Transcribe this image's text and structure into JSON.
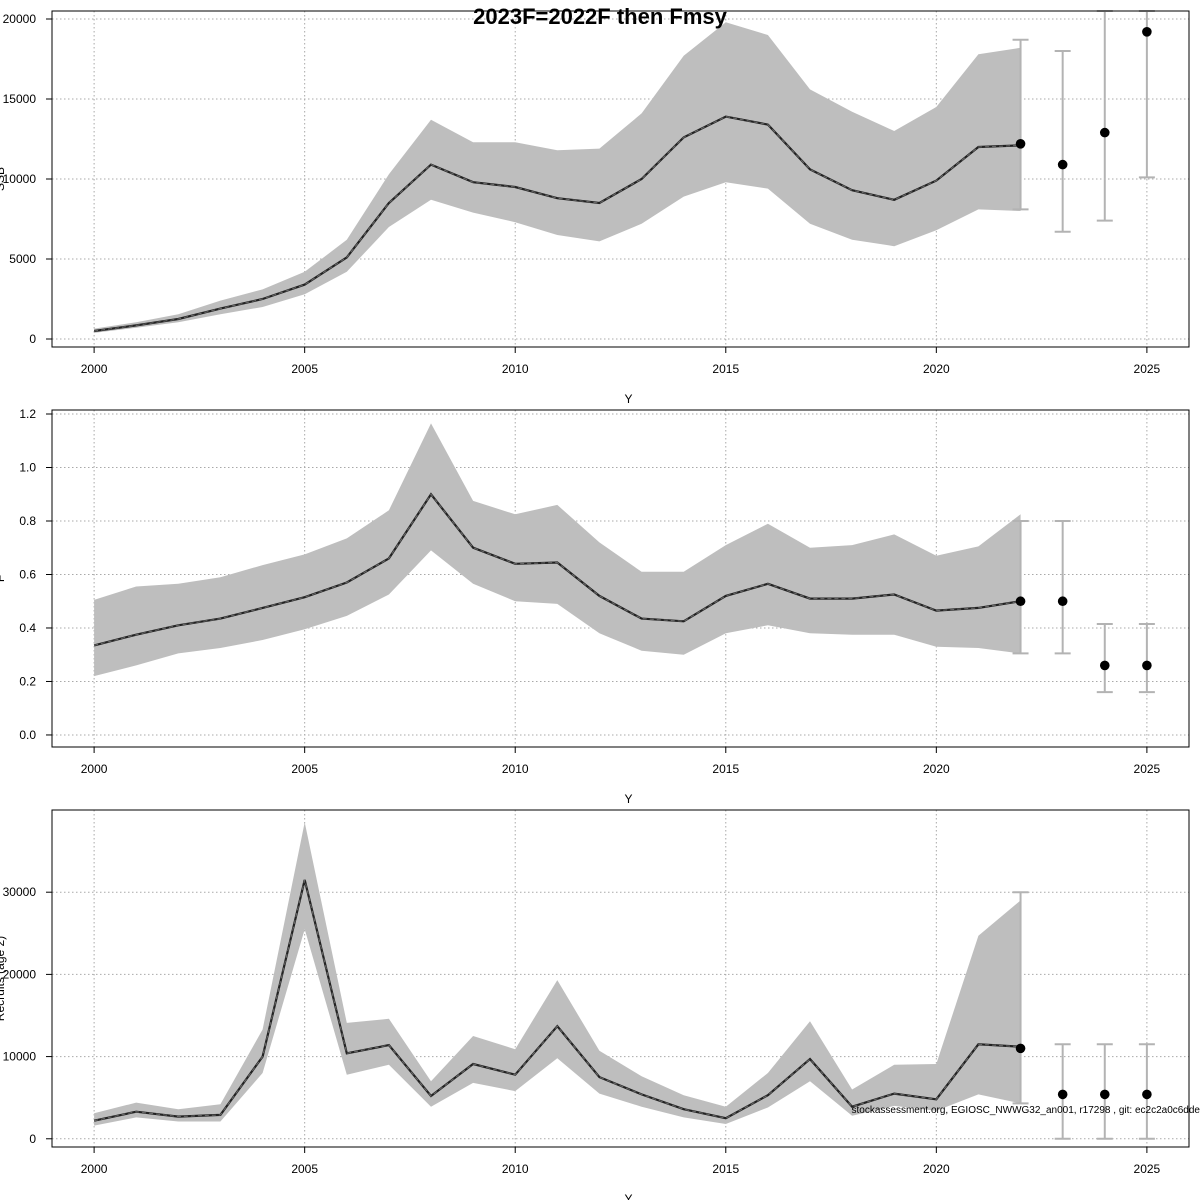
{
  "figure": {
    "title": "2023F=2022F then Fmsy",
    "footer": "stockassessment.org, EGIOSC_NWWG32_an001, r17298 , git: ec2c2a0c6dde"
  },
  "colors": {
    "band": "#bebebe",
    "line": "#000000",
    "errorbar": "#b3b3b3",
    "grid": "#a9a9a9",
    "frame": "#000000"
  },
  "chart_data": [
    {
      "type": "line",
      "name": "ssb",
      "title": "",
      "xlabel": "Y",
      "ylabel": "SSB",
      "xlim": [
        1999,
        2026
      ],
      "ylim": [
        -500,
        20500
      ],
      "xticks": [
        2000,
        2005,
        2010,
        2015,
        2020,
        2025
      ],
      "yticks": [
        0,
        5000,
        10000,
        15000,
        20000
      ],
      "x": [
        2000,
        2001,
        2002,
        2003,
        2004,
        2005,
        2006,
        2007,
        2008,
        2009,
        2010,
        2011,
        2012,
        2013,
        2014,
        2015,
        2016,
        2017,
        2018,
        2019,
        2020,
        2021,
        2022
      ],
      "estimate": [
        500,
        850,
        1250,
        1900,
        2500,
        3400,
        5100,
        8500,
        10900,
        9800,
        9500,
        8800,
        8500,
        10000,
        12600,
        13900,
        13400,
        10600,
        9300,
        8700,
        9900,
        12000,
        12100
      ],
      "lower": [
        380,
        700,
        1050,
        1550,
        2000,
        2800,
        4200,
        7000,
        8700,
        7900,
        7300,
        6500,
        6100,
        7200,
        8900,
        9800,
        9400,
        7200,
        6200,
        5800,
        6800,
        8100,
        8000
      ],
      "upper": [
        650,
        1050,
        1550,
        2400,
        3100,
        4200,
        6200,
        10300,
        13700,
        12300,
        12300,
        11800,
        11900,
        14100,
        17700,
        19800,
        19000,
        15600,
        14200,
        13000,
        14500,
        17800,
        18200
      ],
      "forecast": [
        {
          "x": 2022,
          "value": 12200,
          "low": 8100,
          "high": 18700
        },
        {
          "x": 2023,
          "value": 10900,
          "low": 6700,
          "high": 18000
        },
        {
          "x": 2024,
          "value": 12900,
          "low": 7400,
          "high": 20500
        },
        {
          "x": 2025,
          "value": 19200,
          "low": 10100,
          "high": 20500
        }
      ],
      "grid": true
    },
    {
      "type": "line",
      "name": "fishing-mortality",
      "title": "",
      "xlabel": "Y",
      "ylabel": "F",
      "xlim": [
        1999,
        2026
      ],
      "ylim": [
        -0.045,
        1.215
      ],
      "xticks": [
        2000,
        2005,
        2010,
        2015,
        2020,
        2025
      ],
      "yticks": [
        0.0,
        0.2,
        0.4,
        0.6,
        0.8,
        1.0,
        1.2
      ],
      "tick_labels": [
        "0.0",
        "0.2",
        "0.4",
        "0.6",
        "0.8",
        "1.0",
        "1.2"
      ],
      "x": [
        2000,
        2001,
        2002,
        2003,
        2004,
        2005,
        2006,
        2007,
        2008,
        2009,
        2010,
        2011,
        2012,
        2013,
        2014,
        2015,
        2016,
        2017,
        2018,
        2019,
        2020,
        2021,
        2022
      ],
      "estimate": [
        0.335,
        0.375,
        0.41,
        0.435,
        0.475,
        0.515,
        0.57,
        0.66,
        0.9,
        0.7,
        0.64,
        0.645,
        0.52,
        0.435,
        0.425,
        0.52,
        0.565,
        0.51,
        0.51,
        0.525,
        0.465,
        0.475,
        0.5
      ],
      "lower": [
        0.22,
        0.26,
        0.305,
        0.325,
        0.355,
        0.395,
        0.445,
        0.525,
        0.69,
        0.565,
        0.5,
        0.49,
        0.38,
        0.315,
        0.3,
        0.38,
        0.41,
        0.38,
        0.375,
        0.375,
        0.33,
        0.325,
        0.305
      ],
      "upper": [
        0.505,
        0.555,
        0.565,
        0.59,
        0.635,
        0.675,
        0.735,
        0.84,
        1.165,
        0.875,
        0.825,
        0.86,
        0.72,
        0.61,
        0.61,
        0.71,
        0.79,
        0.7,
        0.71,
        0.75,
        0.67,
        0.705,
        0.825
      ],
      "forecast": [
        {
          "x": 2022,
          "value": 0.5,
          "low": 0.305,
          "high": 0.8
        },
        {
          "x": 2023,
          "value": 0.5,
          "low": 0.305,
          "high": 0.8
        },
        {
          "x": 2024,
          "value": 0.26,
          "low": 0.16,
          "high": 0.415
        },
        {
          "x": 2025,
          "value": 0.26,
          "low": 0.16,
          "high": 0.415
        }
      ],
      "grid": true
    },
    {
      "type": "line",
      "name": "recruitment",
      "title": "",
      "xlabel": "Y",
      "ylabel": "Recruits (age 2)",
      "xlim": [
        1999,
        2026
      ],
      "ylim": [
        -1000,
        40000
      ],
      "xticks": [
        2000,
        2005,
        2010,
        2015,
        2020,
        2025
      ],
      "yticks": [
        0,
        10000,
        20000,
        30000
      ],
      "x": [
        2000,
        2001,
        2002,
        2003,
        2004,
        2005,
        2006,
        2007,
        2008,
        2009,
        2010,
        2011,
        2012,
        2013,
        2014,
        2015,
        2016,
        2017,
        2018,
        2019,
        2020,
        2021,
        2022
      ],
      "estimate": [
        2200,
        3300,
        2700,
        2900,
        10000,
        31500,
        10400,
        11400,
        5200,
        9100,
        7800,
        13700,
        7500,
        5400,
        3600,
        2500,
        5300,
        9700,
        3900,
        5500,
        4800,
        11500,
        11200
      ],
      "lower": [
        1600,
        2600,
        2100,
        2100,
        8000,
        25500,
        7800,
        9000,
        3900,
        6800,
        5800,
        9800,
        5500,
        3900,
        2600,
        1800,
        3800,
        7000,
        2800,
        4000,
        3400,
        5400,
        4300
      ],
      "upper": [
        3100,
        4400,
        3600,
        4200,
        13300,
        38500,
        14100,
        14600,
        7000,
        12500,
        10900,
        19300,
        10700,
        7600,
        5300,
        3900,
        8000,
        14300,
        6000,
        9000,
        9100,
        24700,
        29000
      ],
      "forecast": [
        {
          "x": 2022,
          "value": 11000,
          "low": 4300,
          "high": 30000
        },
        {
          "x": 2023,
          "value": 5400,
          "low": 0,
          "high": 11500
        },
        {
          "x": 2024,
          "value": 5400,
          "low": 0,
          "high": 11500
        },
        {
          "x": 2025,
          "value": 5400,
          "low": 0,
          "high": 11500
        }
      ],
      "grid": true
    }
  ]
}
